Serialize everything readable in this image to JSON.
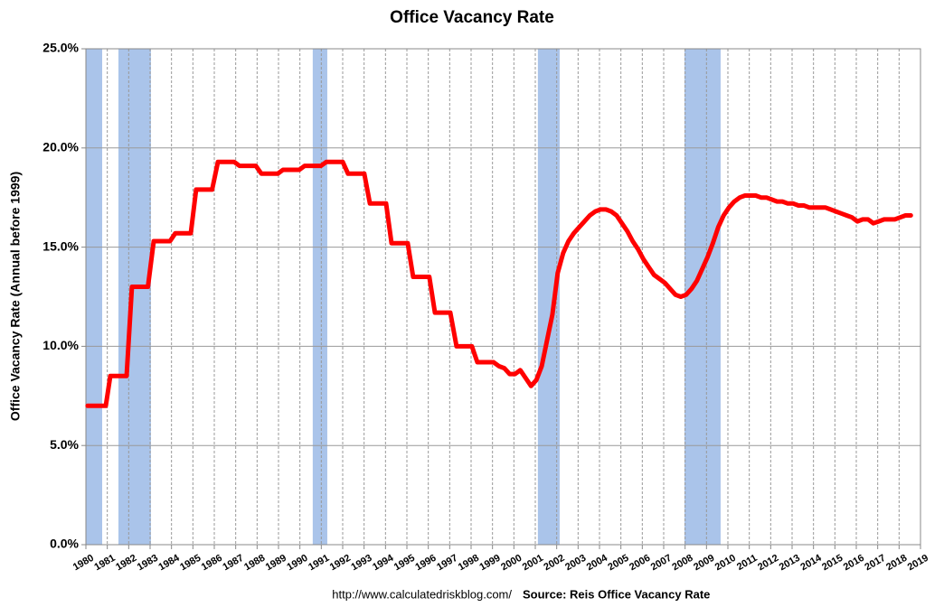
{
  "chart_data": {
    "type": "line",
    "title": "Office Vacancy Rate",
    "y_label": "Office Vacancy Rate (Annual before 1999)",
    "footer_url": "http://www.calculatedriskblog.com/",
    "footer_source": "Source: Reis Office Vacancy Rate",
    "color": "#ff0000",
    "recession_color": "#aac4ea",
    "grid": true,
    "xlim": [
      1980,
      2019
    ],
    "xticks": [
      1980,
      1981,
      1982,
      1983,
      1984,
      1985,
      1986,
      1987,
      1988,
      1989,
      1990,
      1991,
      1992,
      1993,
      1994,
      1995,
      1996,
      1997,
      1998,
      1999,
      2000,
      2001,
      2002,
      2003,
      2004,
      2005,
      2006,
      2007,
      2008,
      2009,
      2010,
      2011,
      2012,
      2013,
      2014,
      2015,
      2016,
      2017,
      2018,
      2019
    ],
    "ylim": [
      0,
      25
    ],
    "yticks": [
      {
        "value": 0,
        "label": "0.0%"
      },
      {
        "value": 5,
        "label": "5.0%"
      },
      {
        "value": 10,
        "label": "10.0%"
      },
      {
        "value": 15,
        "label": "15.0%"
      },
      {
        "value": 20,
        "label": "20.0%"
      },
      {
        "value": 25,
        "label": "25.0%"
      }
    ],
    "recessions": [
      {
        "start": 1980.0,
        "end": 1980.76
      },
      {
        "start": 1981.52,
        "end": 1983.04
      },
      {
        "start": 1990.6,
        "end": 1991.28
      },
      {
        "start": 2001.12,
        "end": 2002.14
      },
      {
        "start": 2007.97,
        "end": 2009.66
      }
    ],
    "x": [
      1980.08,
      1980.93,
      1981.14,
      1981.9,
      1982.15,
      1982.9,
      1983.17,
      1983.93,
      1984.18,
      1984.9,
      1985.15,
      1985.9,
      1986.17,
      1986.93,
      1987.18,
      1987.94,
      1988.2,
      1988.96,
      1989.21,
      1989.97,
      1990.22,
      1990.98,
      1991.24,
      1992.0,
      1992.25,
      1993.01,
      1993.27,
      1994.03,
      1994.28,
      1995.04,
      1995.29,
      1996.05,
      1996.31,
      1997.03,
      1997.32,
      1998.04,
      1998.29,
      1999.05,
      1999.3,
      1999.55,
      1999.8,
      2000.05,
      2000.3,
      2000.55,
      2000.8,
      2001.05,
      2001.3,
      2001.55,
      2001.8,
      2002.05,
      2002.3,
      2002.55,
      2002.8,
      2003.05,
      2003.3,
      2003.55,
      2003.8,
      2004.05,
      2004.3,
      2004.55,
      2004.8,
      2005.05,
      2005.3,
      2005.55,
      2005.8,
      2006.05,
      2006.3,
      2006.55,
      2006.8,
      2007.05,
      2007.3,
      2007.55,
      2007.8,
      2008.05,
      2008.3,
      2008.55,
      2008.8,
      2009.05,
      2009.3,
      2009.55,
      2009.8,
      2010.05,
      2010.3,
      2010.55,
      2010.8,
      2011.05,
      2011.3,
      2011.55,
      2011.8,
      2012.05,
      2012.3,
      2012.55,
      2012.8,
      2013.05,
      2013.3,
      2013.55,
      2013.8,
      2014.05,
      2014.3,
      2014.55,
      2014.8,
      2015.05,
      2015.3,
      2015.55,
      2015.8,
      2016.05,
      2016.3,
      2016.55,
      2016.8,
      2017.05,
      2017.3,
      2017.55,
      2017.8,
      2018.05,
      2018.3,
      2018.55
    ],
    "values": [
      7.0,
      7.0,
      8.5,
      8.5,
      13.0,
      13.0,
      15.3,
      15.3,
      15.7,
      15.7,
      17.9,
      17.9,
      19.3,
      19.3,
      19.1,
      19.1,
      18.7,
      18.7,
      18.9,
      18.9,
      19.1,
      19.1,
      19.3,
      19.3,
      18.7,
      18.7,
      17.2,
      17.2,
      15.2,
      15.2,
      13.5,
      13.5,
      11.7,
      11.7,
      10.0,
      10.0,
      9.2,
      9.2,
      9.0,
      8.9,
      8.6,
      8.6,
      8.8,
      8.4,
      8.0,
      8.3,
      9.0,
      10.3,
      11.6,
      13.7,
      14.7,
      15.3,
      15.7,
      16.0,
      16.3,
      16.6,
      16.8,
      16.9,
      16.9,
      16.8,
      16.6,
      16.2,
      15.8,
      15.3,
      14.9,
      14.4,
      14.0,
      13.6,
      13.4,
      13.2,
      12.9,
      12.6,
      12.5,
      12.6,
      12.9,
      13.3,
      13.9,
      14.5,
      15.2,
      16.0,
      16.6,
      17.0,
      17.3,
      17.5,
      17.6,
      17.6,
      17.6,
      17.5,
      17.5,
      17.4,
      17.3,
      17.3,
      17.2,
      17.2,
      17.1,
      17.1,
      17.0,
      17.0,
      17.0,
      17.0,
      16.9,
      16.8,
      16.7,
      16.6,
      16.5,
      16.3,
      16.4,
      16.4,
      16.2,
      16.3,
      16.4,
      16.4,
      16.4,
      16.5,
      16.6,
      16.6
    ]
  }
}
